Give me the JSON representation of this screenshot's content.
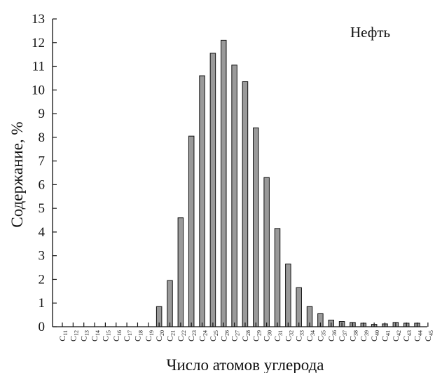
{
  "chart_data": {
    "type": "bar",
    "ylabel": "Содержание, %",
    "xlabel": "Число атомов углерода",
    "legend": "Нефть",
    "ylim": [
      0,
      13
    ],
    "yticks": [
      "0",
      "1",
      "2",
      "3",
      "4",
      "5",
      "6",
      "7",
      "8",
      "9",
      "10",
      "11",
      "12",
      "13"
    ],
    "categories": [
      {
        "base": "C",
        "sub": "11"
      },
      {
        "base": "C",
        "sub": "12"
      },
      {
        "base": "C",
        "sub": "13"
      },
      {
        "base": "C",
        "sub": "14"
      },
      {
        "base": "C",
        "sub": "15"
      },
      {
        "base": "C",
        "sub": "16"
      },
      {
        "base": "C",
        "sub": "17"
      },
      {
        "base": "C",
        "sub": "18"
      },
      {
        "base": "C",
        "sub": "19"
      },
      {
        "base": "C",
        "sub": "20"
      },
      {
        "base": "C",
        "sub": "21"
      },
      {
        "base": "C",
        "sub": "22"
      },
      {
        "base": "C",
        "sub": "23"
      },
      {
        "base": "C",
        "sub": "24"
      },
      {
        "base": "C",
        "sub": "25"
      },
      {
        "base": "C",
        "sub": "26"
      },
      {
        "base": "C",
        "sub": "27"
      },
      {
        "base": "C",
        "sub": "28"
      },
      {
        "base": "C",
        "sub": "29"
      },
      {
        "base": "C",
        "sub": "30"
      },
      {
        "base": "C",
        "sub": "31"
      },
      {
        "base": "C",
        "sub": "32"
      },
      {
        "base": "C",
        "sub": "33"
      },
      {
        "base": "C",
        "sub": "34"
      },
      {
        "base": "C",
        "sub": "35"
      },
      {
        "base": "C",
        "sub": "36"
      },
      {
        "base": "C",
        "sub": "37"
      },
      {
        "base": "C",
        "sub": "38"
      },
      {
        "base": "C",
        "sub": "39"
      },
      {
        "base": "C",
        "sub": "40"
      },
      {
        "base": "C",
        "sub": "41"
      },
      {
        "base": "C",
        "sub": "42"
      },
      {
        "base": "C",
        "sub": "43"
      },
      {
        "base": "C",
        "sub": "44"
      },
      {
        "base": "C",
        "sub": "45"
      }
    ],
    "values": [
      0,
      0,
      0,
      0,
      0,
      0,
      0,
      0,
      0,
      0.85,
      1.95,
      4.6,
      8.05,
      10.6,
      11.55,
      12.1,
      11.05,
      10.35,
      8.4,
      6.3,
      4.15,
      2.65,
      1.65,
      0.85,
      0.55,
      0.28,
      0.22,
      0.18,
      0.15,
      0.1,
      0.12,
      0.18,
      0.15,
      0.15,
      0
    ],
    "colors": {
      "bar_fill": "#9a9a9a",
      "bar_stroke": "#111111",
      "axis": "#111111"
    }
  }
}
